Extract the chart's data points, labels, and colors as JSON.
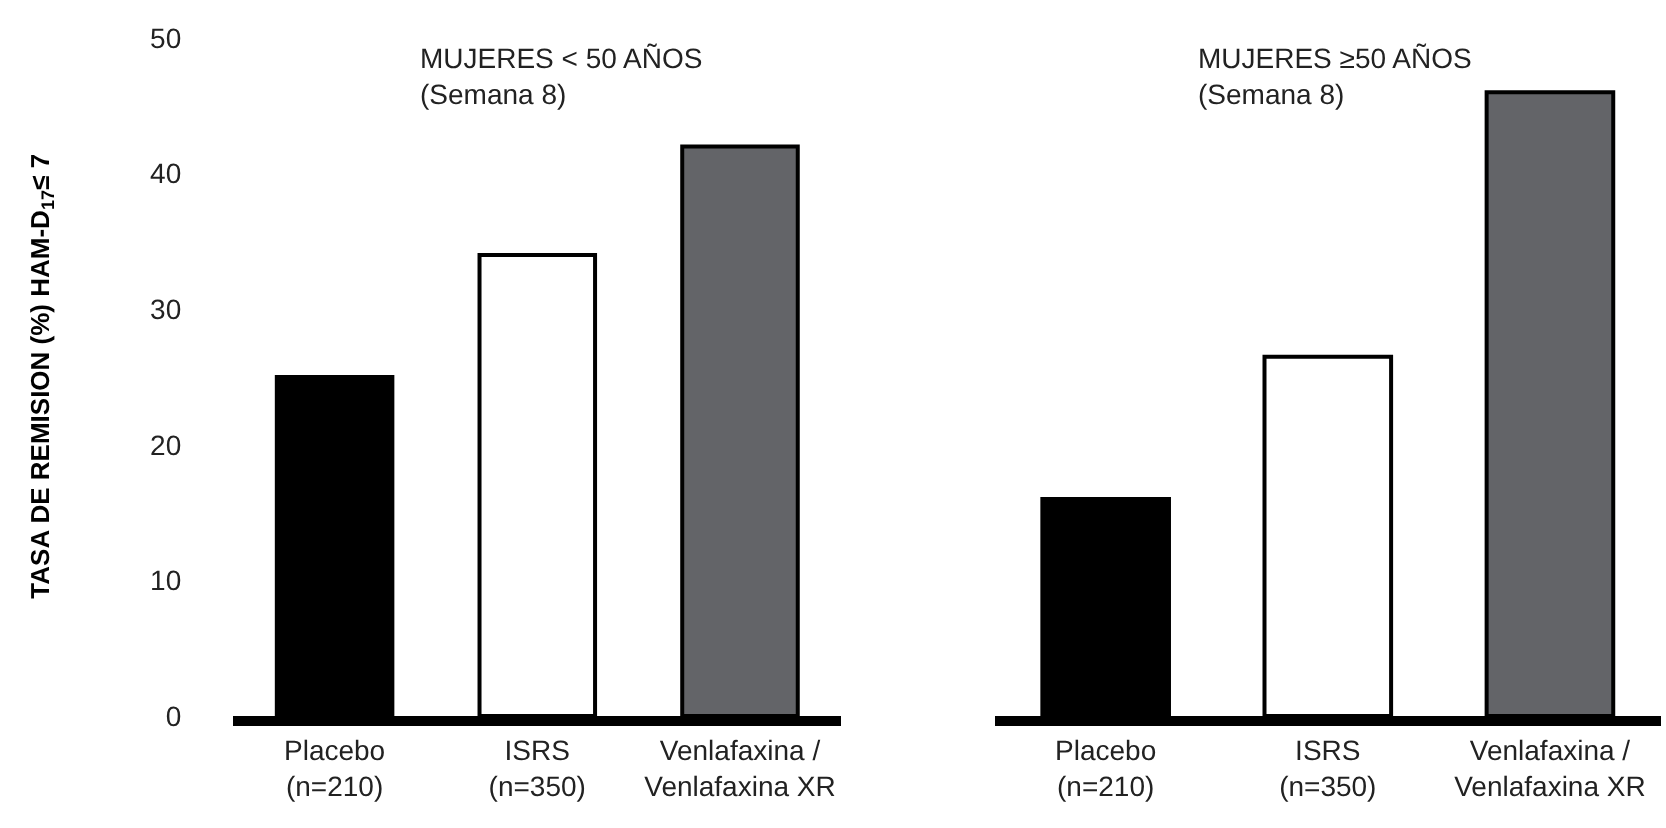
{
  "chart_data": [
    {
      "type": "bar",
      "title": "MUJERES < 50 AÑOS",
      "subtitle": "(Semana 8)",
      "ylabel": "TASA DE REMISION (%) HAM-D$_{17}$≤ 7",
      "categories": [
        "Placebo\n(n=210)",
        "ISRS\n(n=350)",
        "Venlafaxina /\nVenlafaxina XR"
      ],
      "values": [
        25,
        34,
        42
      ],
      "colors": [
        "#000000",
        "#ffffff",
        "#636468"
      ],
      "ylim": [
        0,
        50
      ],
      "yticks": [
        0,
        10,
        20,
        30,
        40,
        50
      ],
      "grid": false
    },
    {
      "type": "bar",
      "title": "MUJERES ≥50 AÑOS",
      "subtitle": "(Semana 8)",
      "categories": [
        "Placebo\n(n=210)",
        "ISRS\n(n=350)",
        "Venlafaxina /\nVenlafaxina XR"
      ],
      "values": [
        16,
        26.5,
        46
      ],
      "colors": [
        "#000000",
        "#ffffff",
        "#636468"
      ],
      "ylim": [
        0,
        50
      ],
      "yticks": [
        0,
        10,
        20,
        30,
        40,
        50
      ],
      "tick_labels": "x",
      "grid": false
    }
  ]
}
